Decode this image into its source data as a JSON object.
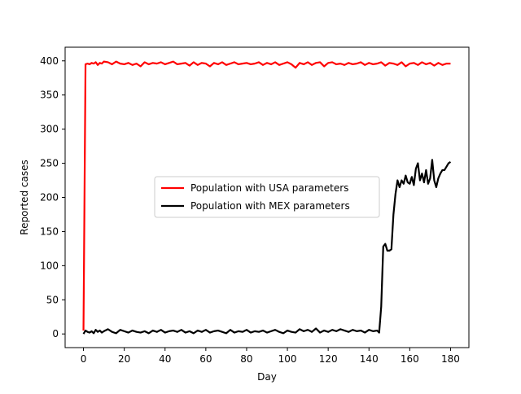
{
  "chart_data": {
    "type": "line",
    "title": "",
    "xlabel": "Day",
    "ylabel": "Reported cases",
    "xlim": [
      -9,
      189
    ],
    "ylim": [
      -20,
      420
    ],
    "xticks": [
      0,
      20,
      40,
      60,
      80,
      100,
      120,
      140,
      160,
      180
    ],
    "yticks": [
      0,
      50,
      100,
      150,
      200,
      250,
      300,
      350,
      400
    ],
    "grid": false,
    "legend_position": "center-right",
    "series": [
      {
        "name": "Population with USA parameters",
        "color": "#ff0000",
        "x": [
          0,
          1,
          2,
          3,
          4,
          5,
          6,
          7,
          8,
          9,
          10,
          12,
          14,
          16,
          18,
          20,
          22,
          24,
          26,
          28,
          30,
          32,
          34,
          36,
          38,
          40,
          42,
          44,
          46,
          48,
          50,
          52,
          54,
          56,
          58,
          60,
          62,
          64,
          66,
          68,
          70,
          72,
          74,
          76,
          78,
          80,
          82,
          84,
          86,
          88,
          90,
          92,
          94,
          96,
          98,
          100,
          102,
          104,
          106,
          108,
          110,
          112,
          114,
          116,
          118,
          120,
          122,
          124,
          126,
          128,
          130,
          132,
          134,
          136,
          138,
          140,
          142,
          144,
          146,
          148,
          150,
          152,
          154,
          156,
          158,
          160,
          162,
          164,
          166,
          168,
          170,
          172,
          174,
          176,
          178,
          180
        ],
        "y": [
          5,
          395,
          396,
          395,
          397,
          396,
          398,
          394,
          397,
          396,
          399,
          398,
          395,
          399,
          396,
          395,
          397,
          394,
          396,
          392,
          398,
          395,
          397,
          396,
          398,
          395,
          397,
          399,
          395,
          396,
          397,
          393,
          398,
          394,
          397,
          396,
          392,
          397,
          395,
          398,
          394,
          396,
          398,
          395,
          396,
          397,
          395,
          396,
          398,
          394,
          397,
          395,
          398,
          394,
          396,
          398,
          395,
          390,
          397,
          395,
          398,
          394,
          397,
          398,
          392,
          397,
          398,
          395,
          396,
          394,
          397,
          395,
          396,
          398,
          394,
          397,
          395,
          396,
          398,
          393,
          397,
          396,
          394,
          398,
          392,
          396,
          397,
          394,
          398,
          395,
          397,
          393,
          397,
          394,
          396,
          396
        ]
      },
      {
        "name": "Population with MEX parameters",
        "color": "#000000",
        "x": [
          0,
          1,
          2,
          3,
          4,
          5,
          6,
          7,
          8,
          9,
          10,
          12,
          14,
          16,
          18,
          20,
          22,
          24,
          26,
          28,
          30,
          32,
          34,
          36,
          38,
          40,
          42,
          44,
          46,
          48,
          50,
          52,
          54,
          56,
          58,
          60,
          62,
          64,
          66,
          68,
          70,
          72,
          74,
          76,
          78,
          80,
          82,
          84,
          86,
          88,
          90,
          92,
          94,
          96,
          98,
          100,
          102,
          104,
          106,
          108,
          110,
          112,
          114,
          116,
          118,
          120,
          122,
          124,
          126,
          128,
          130,
          132,
          134,
          136,
          138,
          140,
          142,
          144,
          145,
          146,
          147,
          148,
          149,
          150,
          151,
          152,
          153,
          154,
          155,
          156,
          157,
          158,
          159,
          160,
          161,
          162,
          163,
          164,
          165,
          166,
          167,
          168,
          169,
          170,
          171,
          172,
          173,
          174,
          175,
          176,
          177,
          178,
          179,
          180
        ],
        "y": [
          0,
          5,
          3,
          2,
          4,
          1,
          6,
          3,
          5,
          2,
          4,
          7,
          3,
          1,
          6,
          4,
          2,
          5,
          3,
          2,
          4,
          1,
          5,
          3,
          6,
          2,
          4,
          5,
          3,
          6,
          2,
          4,
          1,
          5,
          3,
          6,
          2,
          4,
          5,
          3,
          1,
          6,
          2,
          4,
          3,
          6,
          2,
          4,
          3,
          5,
          2,
          4,
          6,
          3,
          1,
          5,
          3,
          2,
          7,
          4,
          6,
          3,
          8,
          2,
          5,
          3,
          6,
          4,
          7,
          5,
          3,
          6,
          4,
          5,
          2,
          6,
          4,
          5,
          2,
          40,
          128,
          132,
          122,
          122,
          124,
          175,
          205,
          225,
          215,
          225,
          220,
          232,
          222,
          220,
          230,
          218,
          242,
          250,
          225,
          235,
          222,
          240,
          220,
          228,
          255,
          225,
          215,
          228,
          235,
          240,
          240,
          245,
          250,
          252
        ]
      }
    ]
  }
}
